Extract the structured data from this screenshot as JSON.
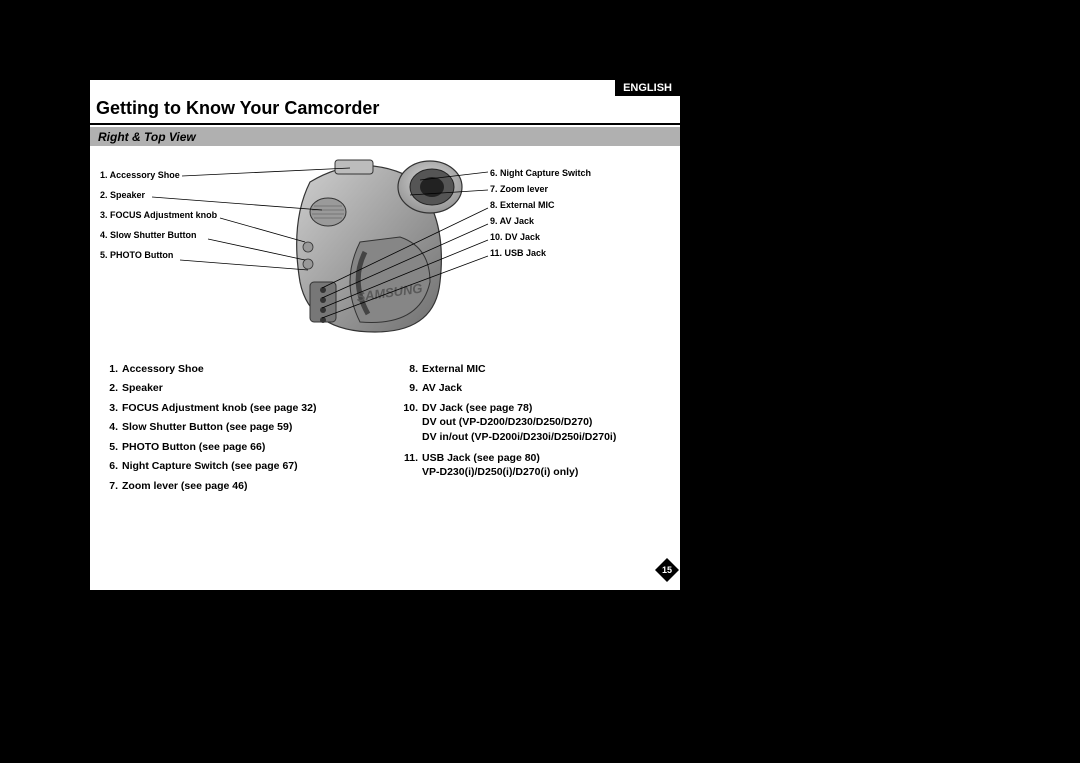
{
  "language_badge": "ENGLISH",
  "title": "Getting to Know Your Camcorder",
  "subtitle": "Right & Top View",
  "page_number": "15",
  "colors": {
    "page_bg": "#ffffff",
    "body_bg": "#000000",
    "bar_bg": "#b0b0b0",
    "text": "#000000",
    "badge_bg": "#000000",
    "badge_text": "#ffffff"
  },
  "callouts_left": [
    {
      "n": "1",
      "label": "Accessory Shoe"
    },
    {
      "n": "2",
      "label": "Speaker"
    },
    {
      "n": "3",
      "label": "FOCUS Adjustment knob"
    },
    {
      "n": "4",
      "label": "Slow Shutter Button"
    },
    {
      "n": "5",
      "label": "PHOTO Button"
    }
  ],
  "callouts_right": [
    {
      "n": "6",
      "label": "Night Capture Switch"
    },
    {
      "n": "7",
      "label": "Zoom lever"
    },
    {
      "n": "8",
      "label": "External MIC"
    },
    {
      "n": "9",
      "label": "AV Jack"
    },
    {
      "n": "10",
      "label": "DV Jack"
    },
    {
      "n": "11",
      "label": "USB Jack"
    }
  ],
  "list_left": [
    {
      "n": "1.",
      "text": "Accessory Shoe"
    },
    {
      "n": "2.",
      "text": "Speaker"
    },
    {
      "n": "3.",
      "text": "FOCUS Adjustment knob (see page 32)"
    },
    {
      "n": "4.",
      "text": "Slow Shutter Button (see page 59)"
    },
    {
      "n": "5.",
      "text": "PHOTO Button (see page 66)"
    },
    {
      "n": "6.",
      "text": "Night Capture Switch (see page 67)"
    },
    {
      "n": "7.",
      "text": "Zoom lever (see page 46)"
    }
  ],
  "list_right": [
    {
      "n": "8.",
      "text": "External MIC"
    },
    {
      "n": "9.",
      "text": "AV Jack"
    },
    {
      "n": "10.",
      "text": "DV Jack (see page 78)",
      "sub": [
        "DV out (VP-D200/D230/D250/D270)",
        "DV in/out (VP-D200i/D230i/D250i/D270i)"
      ]
    },
    {
      "n": "11.",
      "text": "USB Jack (see page 80)",
      "sub": [
        "VP-D230(i)/D250(i)/D270(i) only)"
      ]
    }
  ]
}
